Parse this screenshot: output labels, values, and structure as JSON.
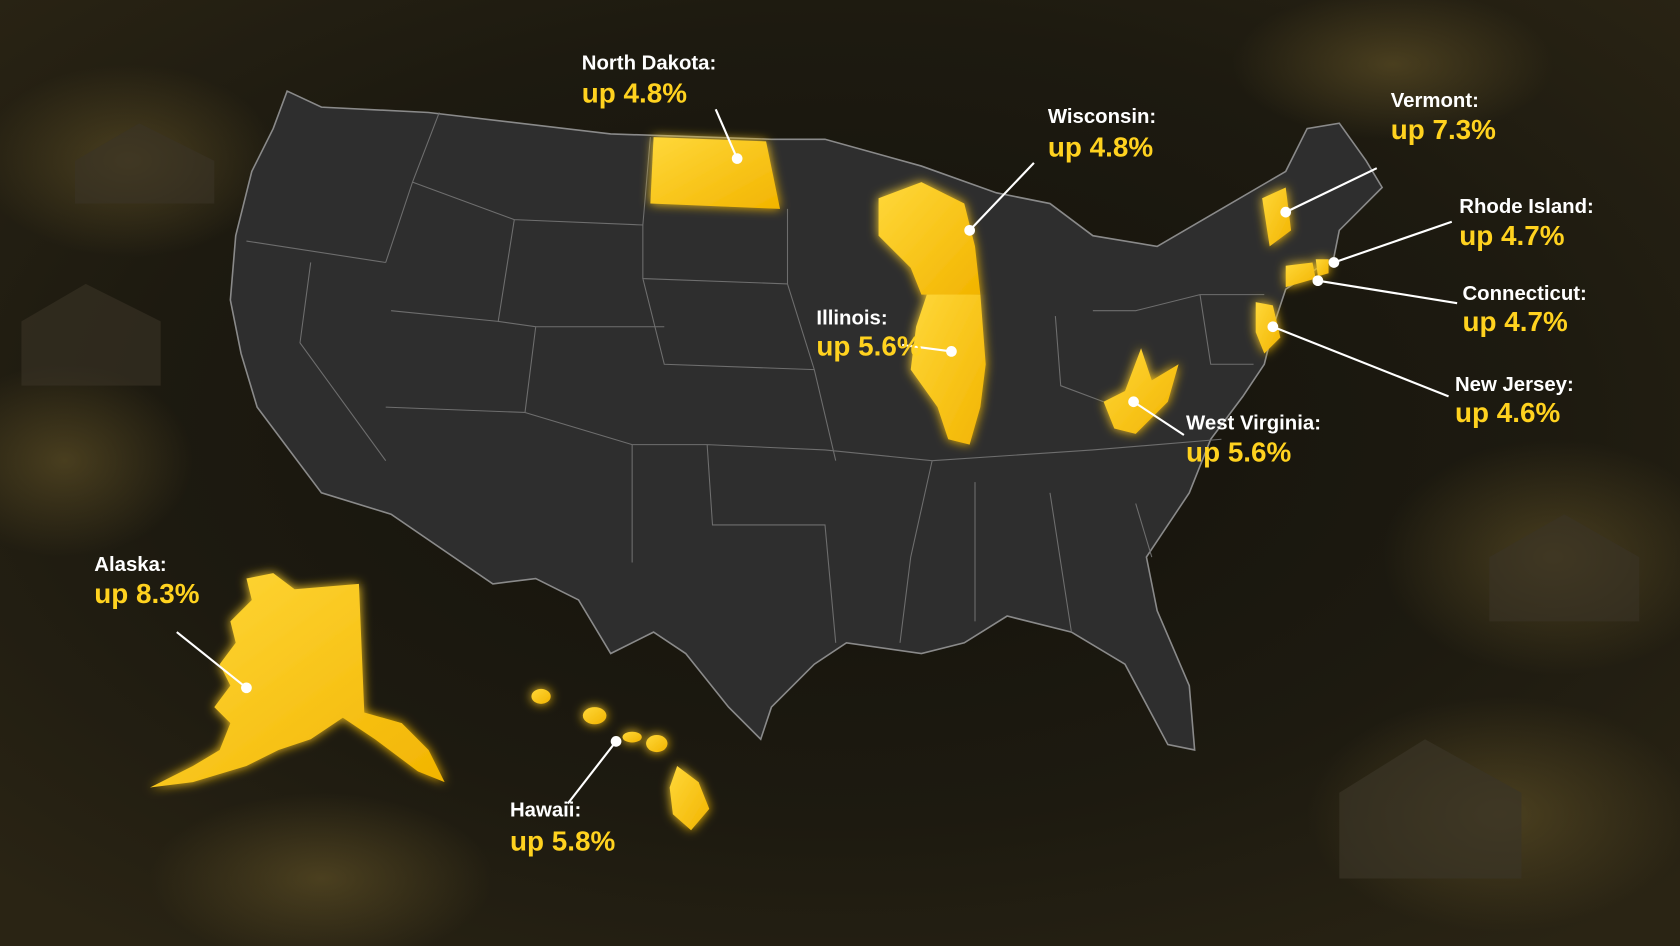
{
  "labels": [
    {
      "name": "North Dakota:",
      "value": "up 4.8%"
    },
    {
      "name": "Wisconsin:",
      "value": "up 4.8%"
    },
    {
      "name": "Illinois:",
      "value": "up 5.6%"
    },
    {
      "name": "Vermont:",
      "value": "up 7.3%"
    },
    {
      "name": "Rhode Island:",
      "value": "up 4.7%"
    },
    {
      "name": "Connecticut:",
      "value": "up 4.7%"
    },
    {
      "name": "New Jersey:",
      "value": "up 4.6%"
    },
    {
      "name": "West Virginia:",
      "value": "up 5.6%"
    },
    {
      "name": "Alaska:",
      "value": "up 8.3%"
    },
    {
      "name": "Hawaii:",
      "value": "up 5.8%"
    }
  ]
}
